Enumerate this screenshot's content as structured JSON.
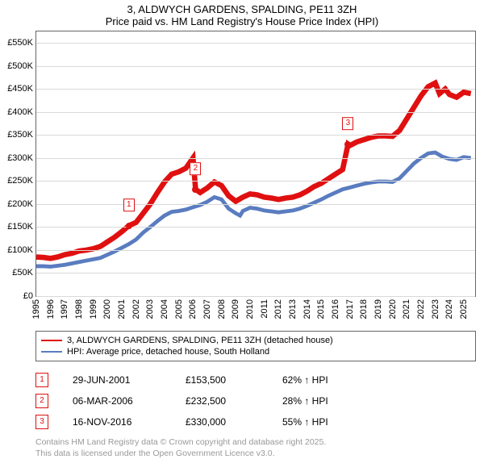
{
  "title": {
    "line1": "3, ALDWYCH GARDENS, SPALDING, PE11 3ZH",
    "line2": "Price paid vs. HM Land Registry's House Price Index (HPI)"
  },
  "chart": {
    "type": "line",
    "background_color": "#ffffff",
    "grid_color": "#d9d9d9",
    "axis_color": "#666666",
    "x": {
      "min": 1995,
      "max": 2025.8,
      "ticks": [
        1995,
        1996,
        1997,
        1998,
        1999,
        2000,
        2001,
        2002,
        2003,
        2004,
        2005,
        2006,
        2007,
        2008,
        2009,
        2010,
        2011,
        2012,
        2013,
        2014,
        2015,
        2016,
        2017,
        2018,
        2019,
        2020,
        2021,
        2022,
        2023,
        2024,
        2025
      ],
      "label_fontsize": 11
    },
    "y": {
      "min": 0,
      "max": 575,
      "ticks": [
        0,
        50,
        100,
        150,
        200,
        250,
        300,
        350,
        400,
        450,
        500,
        550
      ],
      "tick_labels": [
        "£0",
        "£50K",
        "£100K",
        "£150K",
        "£200K",
        "£250K",
        "£300K",
        "£350K",
        "£400K",
        "£450K",
        "£500K",
        "£550K"
      ],
      "label_fontsize": 11
    },
    "series": [
      {
        "name": "3, ALDWYCH GARDENS, SPALDING, PE11 3ZH (detached house)",
        "color": "#e01010",
        "line_width": 2.2,
        "data": [
          [
            1995.0,
            85
          ],
          [
            1995.5,
            84
          ],
          [
            1996.0,
            82
          ],
          [
            1996.5,
            85
          ],
          [
            1997.0,
            90
          ],
          [
            1997.5,
            93
          ],
          [
            1998.0,
            98
          ],
          [
            1998.5,
            100
          ],
          [
            1999.0,
            103
          ],
          [
            1999.5,
            108
          ],
          [
            2000.0,
            118
          ],
          [
            2000.5,
            128
          ],
          [
            2001.0,
            140
          ],
          [
            2001.5,
            153
          ],
          [
            2002.0,
            160
          ],
          [
            2002.5,
            180
          ],
          [
            2003.0,
            200
          ],
          [
            2003.5,
            225
          ],
          [
            2004.0,
            248
          ],
          [
            2004.5,
            265
          ],
          [
            2005.0,
            270
          ],
          [
            2005.5,
            278
          ],
          [
            2006.0,
            300
          ],
          [
            2006.18,
            232
          ],
          [
            2006.5,
            225
          ],
          [
            2007.0,
            235
          ],
          [
            2007.5,
            248
          ],
          [
            2008.0,
            240
          ],
          [
            2008.5,
            218
          ],
          [
            2009.0,
            206
          ],
          [
            2009.5,
            215
          ],
          [
            2010.0,
            222
          ],
          [
            2010.5,
            220
          ],
          [
            2011.0,
            215
          ],
          [
            2011.5,
            213
          ],
          [
            2012.0,
            210
          ],
          [
            2012.5,
            213
          ],
          [
            2013.0,
            215
          ],
          [
            2013.5,
            220
          ],
          [
            2014.0,
            228
          ],
          [
            2014.5,
            238
          ],
          [
            2015.0,
            245
          ],
          [
            2015.5,
            255
          ],
          [
            2016.0,
            265
          ],
          [
            2016.5,
            275
          ],
          [
            2016.88,
            330
          ],
          [
            2017.0,
            327
          ],
          [
            2017.5,
            335
          ],
          [
            2018.0,
            340
          ],
          [
            2018.5,
            345
          ],
          [
            2019.0,
            348
          ],
          [
            2019.5,
            348
          ],
          [
            2020.0,
            347
          ],
          [
            2020.5,
            360
          ],
          [
            2021.0,
            385
          ],
          [
            2021.5,
            410
          ],
          [
            2022.0,
            435
          ],
          [
            2022.5,
            455
          ],
          [
            2023.0,
            463
          ],
          [
            2023.3,
            440
          ],
          [
            2023.7,
            450
          ],
          [
            2024.0,
            438
          ],
          [
            2024.5,
            432
          ],
          [
            2025.0,
            443
          ],
          [
            2025.5,
            440
          ]
        ]
      },
      {
        "name": "HPI: Average price, detached house, South Holland",
        "color": "#5a7cc0",
        "line_width": 1.6,
        "data": [
          [
            1995.0,
            65
          ],
          [
            1995.5,
            65
          ],
          [
            1996.0,
            64
          ],
          [
            1996.5,
            66
          ],
          [
            1997.0,
            68
          ],
          [
            1997.5,
            71
          ],
          [
            1998.0,
            74
          ],
          [
            1998.5,
            77
          ],
          [
            1999.0,
            80
          ],
          [
            1999.5,
            83
          ],
          [
            2000.0,
            90
          ],
          [
            2000.5,
            97
          ],
          [
            2001.0,
            105
          ],
          [
            2001.5,
            113
          ],
          [
            2002.0,
            123
          ],
          [
            2002.5,
            138
          ],
          [
            2003.0,
            150
          ],
          [
            2003.5,
            163
          ],
          [
            2004.0,
            175
          ],
          [
            2004.5,
            183
          ],
          [
            2005.0,
            185
          ],
          [
            2005.5,
            188
          ],
          [
            2006.0,
            193
          ],
          [
            2006.5,
            198
          ],
          [
            2007.0,
            205
          ],
          [
            2007.5,
            215
          ],
          [
            2008.0,
            210
          ],
          [
            2008.5,
            190
          ],
          [
            2009.0,
            180
          ],
          [
            2009.3,
            175
          ],
          [
            2009.5,
            185
          ],
          [
            2010.0,
            192
          ],
          [
            2010.5,
            190
          ],
          [
            2011.0,
            186
          ],
          [
            2011.5,
            184
          ],
          [
            2012.0,
            182
          ],
          [
            2012.5,
            184
          ],
          [
            2013.0,
            186
          ],
          [
            2013.5,
            190
          ],
          [
            2014.0,
            196
          ],
          [
            2014.5,
            203
          ],
          [
            2015.0,
            210
          ],
          [
            2015.5,
            218
          ],
          [
            2016.0,
            225
          ],
          [
            2016.5,
            232
          ],
          [
            2017.0,
            236
          ],
          [
            2017.5,
            240
          ],
          [
            2018.0,
            244
          ],
          [
            2018.5,
            247
          ],
          [
            2019.0,
            249
          ],
          [
            2019.5,
            249
          ],
          [
            2020.0,
            248
          ],
          [
            2020.5,
            256
          ],
          [
            2021.0,
            272
          ],
          [
            2021.5,
            288
          ],
          [
            2022.0,
            300
          ],
          [
            2022.5,
            310
          ],
          [
            2023.0,
            312
          ],
          [
            2023.5,
            303
          ],
          [
            2024.0,
            298
          ],
          [
            2024.5,
            296
          ],
          [
            2025.0,
            302
          ],
          [
            2025.5,
            300
          ]
        ]
      }
    ],
    "markers": [
      {
        "n": "1",
        "x": 2001.5,
        "y": 153
      },
      {
        "n": "2",
        "x": 2006.18,
        "y": 232
      },
      {
        "n": "3",
        "x": 2016.88,
        "y": 330
      }
    ]
  },
  "legend": {
    "items": [
      {
        "color": "#e01010",
        "label": "3, ALDWYCH GARDENS, SPALDING, PE11 3ZH (detached house)"
      },
      {
        "color": "#5a7cc0",
        "label": "HPI: Average price, detached house, South Holland"
      }
    ]
  },
  "sales": [
    {
      "n": "1",
      "date": "29-JUN-2001",
      "price": "£153,500",
      "hpi": "62% ↑ HPI"
    },
    {
      "n": "2",
      "date": "06-MAR-2006",
      "price": "£232,500",
      "hpi": "28% ↑ HPI"
    },
    {
      "n": "3",
      "date": "16-NOV-2016",
      "price": "£330,000",
      "hpi": "55% ↑ HPI"
    }
  ],
  "footer": {
    "line1": "Contains HM Land Registry data © Crown copyright and database right 2025.",
    "line2": "This data is licensed under the Open Government Licence v3.0."
  }
}
